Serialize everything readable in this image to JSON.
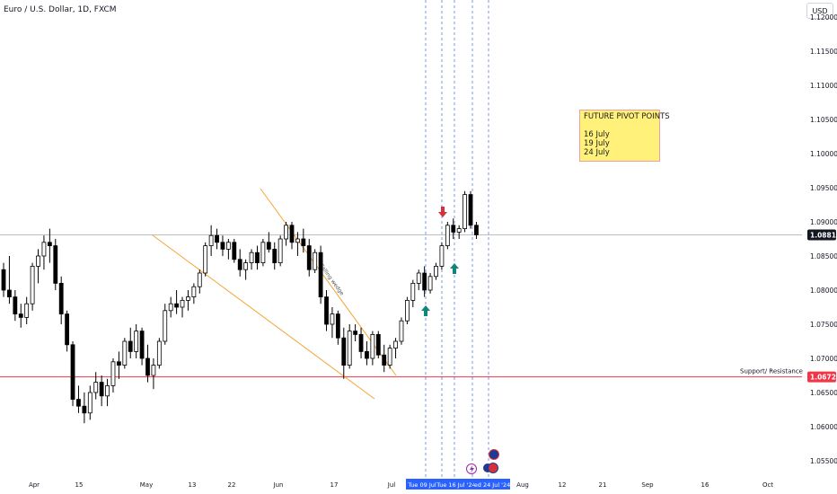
{
  "header": {
    "title": "Euro / U.S. Dollar, 1D, FXCM",
    "currency": "USD"
  },
  "note": {
    "title": "FUTURE PIVOT POINTS",
    "lines": [
      "16 July",
      "19 July",
      "24 July"
    ]
  },
  "labels": {
    "wedge": "Falling wedge",
    "support": "Support/ Resistance"
  },
  "colors": {
    "up": "#ffffff",
    "down": "#000000",
    "wedge": "#f6a533",
    "support": "#f23645",
    "vline": "#5a7fd6",
    "arrow_up": "#10857a",
    "arrow_down": "#d5313b",
    "axis_tag": "#2962ff"
  },
  "chart_data": {
    "type": "candlestick",
    "title": "Euro / U.S. Dollar, 1D, FXCM",
    "y_range": [
      1.0525,
      1.1225
    ],
    "y_ticks": [
      1.055,
      1.06,
      1.065,
      1.07,
      1.075,
      1.08,
      1.085,
      1.09,
      1.095,
      1.1,
      1.105,
      1.11,
      1.115,
      1.12
    ],
    "x_tick_labels": [
      "Apr",
      "15",
      "May",
      "13",
      "22",
      "Jun",
      "17",
      "Jul",
      "Aug",
      "12",
      "21",
      "Sep",
      "16",
      "Oct"
    ],
    "x_tag_labels": [
      "Tue 09 Jul",
      "Tue 16 Jul '24",
      "ed 24 Jul '24"
    ],
    "last_price": 1.0881,
    "support_level": 1.06728,
    "vertical_markers": [
      "Tue 09 Jul",
      "Fri 12 Jul",
      "Tue 16 Jul",
      "Fri 19 Jul",
      "Wed 24 Jul",
      "Mon 29 Jul"
    ],
    "pivot_dates": [
      "16 July",
      "19 July",
      "24 July"
    ],
    "candles": [
      [
        1.083,
        1.084,
        1.079,
        1.08
      ],
      [
        1.08,
        1.085,
        1.078,
        1.079
      ],
      [
        1.079,
        1.08,
        1.0755,
        1.0765
      ],
      [
        1.0765,
        1.078,
        1.0745,
        1.076
      ],
      [
        1.076,
        1.079,
        1.075,
        1.078
      ],
      [
        1.078,
        1.084,
        1.077,
        1.0835
      ],
      [
        1.0835,
        1.086,
        1.081,
        1.085
      ],
      [
        1.085,
        1.088,
        1.083,
        1.087
      ],
      [
        1.087,
        1.089,
        1.084,
        1.0865
      ],
      [
        1.0865,
        1.0875,
        1.08,
        1.081
      ],
      [
        1.081,
        1.082,
        1.075,
        1.0765
      ],
      [
        1.0765,
        1.077,
        1.071,
        1.072
      ],
      [
        1.072,
        1.0725,
        1.063,
        1.064
      ],
      [
        1.064,
        1.066,
        1.062,
        1.063
      ],
      [
        1.063,
        1.065,
        1.0605,
        1.062
      ],
      [
        1.062,
        1.066,
        1.061,
        1.065
      ],
      [
        1.065,
        1.068,
        1.064,
        1.0665
      ],
      [
        1.0665,
        1.0675,
        1.063,
        1.0645
      ],
      [
        1.0645,
        1.067,
        1.063,
        1.066
      ],
      [
        1.066,
        1.07,
        1.065,
        1.0695
      ],
      [
        1.0695,
        1.071,
        1.067,
        1.069
      ],
      [
        1.069,
        1.073,
        1.0685,
        1.0725
      ],
      [
        1.0725,
        1.0745,
        1.07,
        1.071
      ],
      [
        1.071,
        1.075,
        1.07,
        1.074
      ],
      [
        1.074,
        1.0745,
        1.069,
        1.07
      ],
      [
        1.07,
        1.072,
        1.0665,
        1.0675
      ],
      [
        1.0675,
        1.07,
        1.0655,
        1.069
      ],
      [
        1.069,
        1.073,
        1.0685,
        1.0725
      ],
      [
        1.0725,
        1.078,
        1.072,
        1.077
      ],
      [
        1.077,
        1.079,
        1.076,
        1.078
      ],
      [
        1.078,
        1.08,
        1.0765,
        1.0775
      ],
      [
        1.0775,
        1.079,
        1.076,
        1.0785
      ],
      [
        1.0785,
        1.08,
        1.077,
        1.079
      ],
      [
        1.079,
        1.081,
        1.078,
        1.0805
      ],
      [
        1.0805,
        1.083,
        1.0795,
        1.0825
      ],
      [
        1.0825,
        1.087,
        1.082,
        1.0865
      ],
      [
        1.0865,
        1.0895,
        1.085,
        1.088
      ],
      [
        1.088,
        1.089,
        1.086,
        1.087
      ],
      [
        1.087,
        1.088,
        1.085,
        1.086
      ],
      [
        1.086,
        1.0875,
        1.0845,
        1.087
      ],
      [
        1.087,
        1.0875,
        1.084,
        1.0845
      ],
      [
        1.0845,
        1.086,
        1.082,
        1.083
      ],
      [
        1.083,
        1.0845,
        1.0815,
        1.084
      ],
      [
        1.084,
        1.086,
        1.083,
        1.0855
      ],
      [
        1.0855,
        1.0865,
        1.083,
        1.084
      ],
      [
        1.084,
        1.0875,
        1.0835,
        1.087
      ],
      [
        1.087,
        1.0885,
        1.0855,
        1.086
      ],
      [
        1.086,
        1.087,
        1.083,
        1.084
      ],
      [
        1.084,
        1.088,
        1.0835,
        1.0875
      ],
      [
        1.0875,
        1.09,
        1.0865,
        1.0895
      ],
      [
        1.0895,
        1.09,
        1.086,
        1.087
      ],
      [
        1.087,
        1.0885,
        1.085,
        1.0875
      ],
      [
        1.0875,
        1.089,
        1.0855,
        1.0865
      ],
      [
        1.0865,
        1.0875,
        1.082,
        1.083
      ],
      [
        1.083,
        1.086,
        1.0825,
        1.0855
      ],
      [
        1.0855,
        1.0865,
        1.078,
        1.079
      ],
      [
        1.079,
        1.08,
        1.074,
        1.075
      ],
      [
        1.075,
        1.0775,
        1.073,
        1.0765
      ],
      [
        1.0765,
        1.077,
        1.072,
        1.073
      ],
      [
        1.073,
        1.0745,
        1.067,
        1.069
      ],
      [
        1.069,
        1.075,
        1.0685,
        1.074
      ],
      [
        1.074,
        1.075,
        1.0725,
        1.0735
      ],
      [
        1.0735,
        1.0745,
        1.07,
        1.071
      ],
      [
        1.071,
        1.0725,
        1.069,
        1.07
      ],
      [
        1.07,
        1.074,
        1.069,
        1.0735
      ],
      [
        1.0735,
        1.074,
        1.07,
        1.0705
      ],
      [
        1.0705,
        1.072,
        1.068,
        1.069
      ],
      [
        1.069,
        1.072,
        1.0685,
        1.0715
      ],
      [
        1.0715,
        1.073,
        1.07,
        1.0725
      ],
      [
        1.0725,
        1.076,
        1.072,
        1.0755
      ],
      [
        1.0755,
        1.079,
        1.075,
        1.0785
      ],
      [
        1.0785,
        1.0815,
        1.0775,
        1.081
      ],
      [
        1.081,
        1.083,
        1.08,
        1.0825
      ],
      [
        1.0825,
        1.0835,
        1.079,
        1.08
      ],
      [
        1.08,
        1.0825,
        1.0795,
        1.082
      ],
      [
        1.082,
        1.084,
        1.0815,
        1.0835
      ],
      [
        1.0835,
        1.087,
        1.083,
        1.0865
      ],
      [
        1.0865,
        1.09,
        1.086,
        1.0895
      ],
      [
        1.0895,
        1.0905,
        1.0875,
        1.0885
      ],
      [
        1.0885,
        1.0895,
        1.0875,
        1.089
      ],
      [
        1.089,
        1.0945,
        1.0885,
        1.094
      ],
      [
        1.094,
        1.0945,
        1.089,
        1.0895
      ],
      [
        1.0895,
        1.09,
        1.0875,
        1.0881
      ]
    ]
  }
}
